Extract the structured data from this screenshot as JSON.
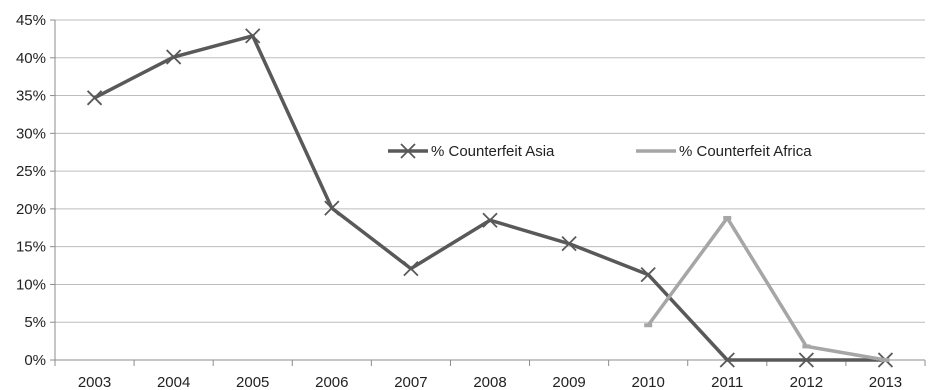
{
  "chart_data": {
    "type": "line",
    "categories": [
      "2003",
      "2004",
      "2005",
      "2006",
      "2007",
      "2008",
      "2009",
      "2010",
      "2011",
      "2012",
      "2013"
    ],
    "series": [
      {
        "name": "% Counterfeit Asia",
        "color": "#595959",
        "marker": "x",
        "values": [
          34.7,
          40.1,
          42.9,
          20.1,
          12.1,
          18.5,
          15.4,
          11.3,
          0,
          0,
          0
        ]
      },
      {
        "name": "% Counterfeit Africa",
        "color": "#a6a6a6",
        "marker": "dash",
        "values": [
          null,
          null,
          null,
          null,
          null,
          null,
          null,
          4.6,
          18.8,
          1.8,
          0
        ]
      }
    ],
    "ylim": [
      0,
      45
    ],
    "yticks": [
      "0%",
      "5%",
      "10%",
      "15%",
      "20%",
      "25%",
      "30%",
      "35%",
      "40%",
      "45%"
    ],
    "grid": true,
    "legend_position": "center-right"
  }
}
